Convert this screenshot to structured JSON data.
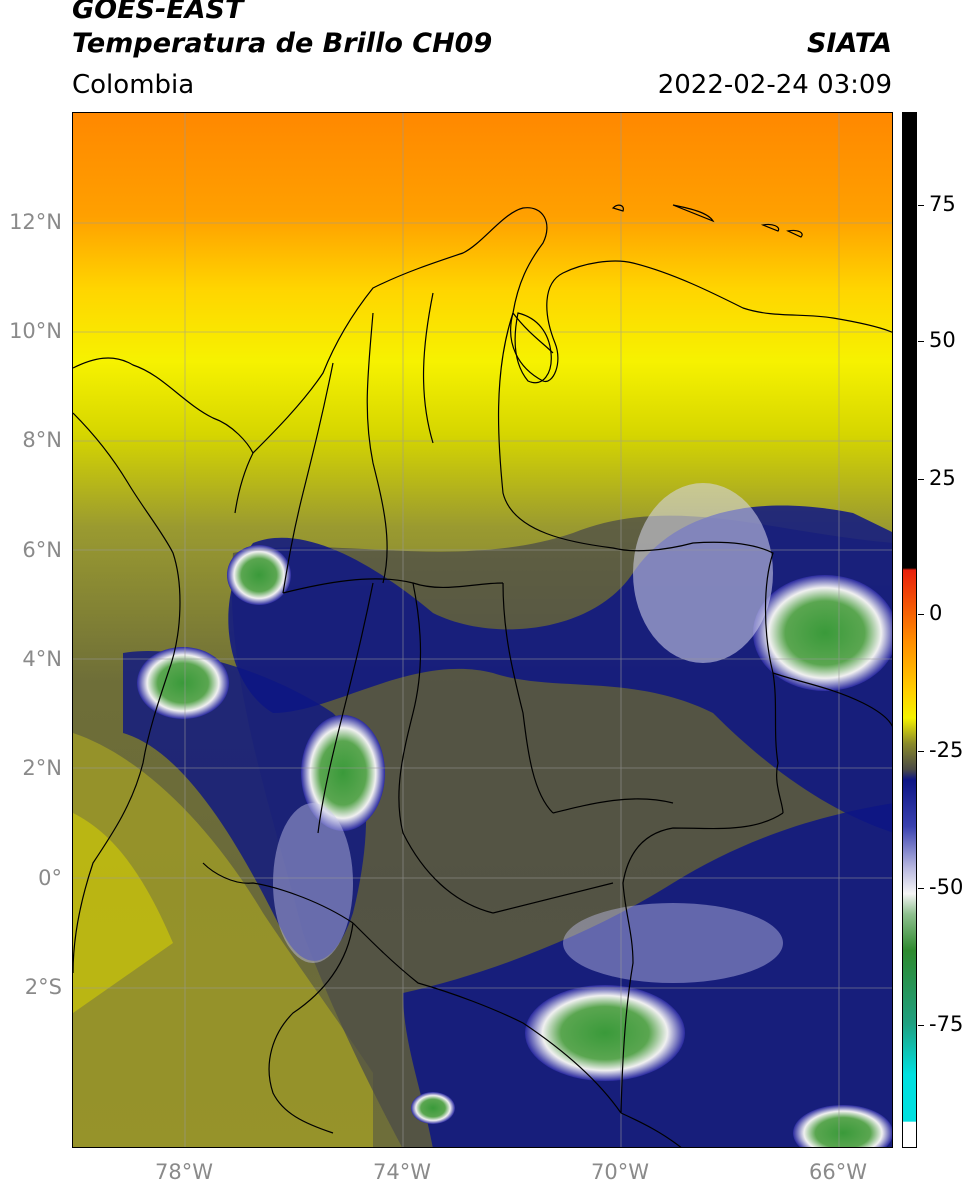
{
  "header": {
    "line1": "GOES-EAST",
    "line2": "Temperatura de Brillo CH09",
    "region": "Colombia",
    "brand": "SIATA",
    "datetime": "2022-02-24 03:09"
  },
  "map": {
    "lat_labels": [
      "12°N",
      "10°N",
      "8°N",
      "6°N",
      "4°N",
      "2°N",
      "0°",
      "2°S"
    ],
    "lon_labels": [
      "78°W",
      "74°W",
      "70°W",
      "66°W"
    ]
  },
  "colorbar": {
    "labels": [
      "75",
      "50",
      "25",
      "0",
      "-25",
      "-50",
      "-75"
    ],
    "colors": {
      "black": "#000000",
      "red": "#e8200c",
      "orange": "#ff8c00",
      "yellow": "#f5f200",
      "olive": "#8a8a2a",
      "gray": "#4a4a46",
      "navy": "#0d1585",
      "white": "#f5f5f5",
      "green": "#2e8a2e",
      "cyan": "#00e0e0"
    }
  }
}
